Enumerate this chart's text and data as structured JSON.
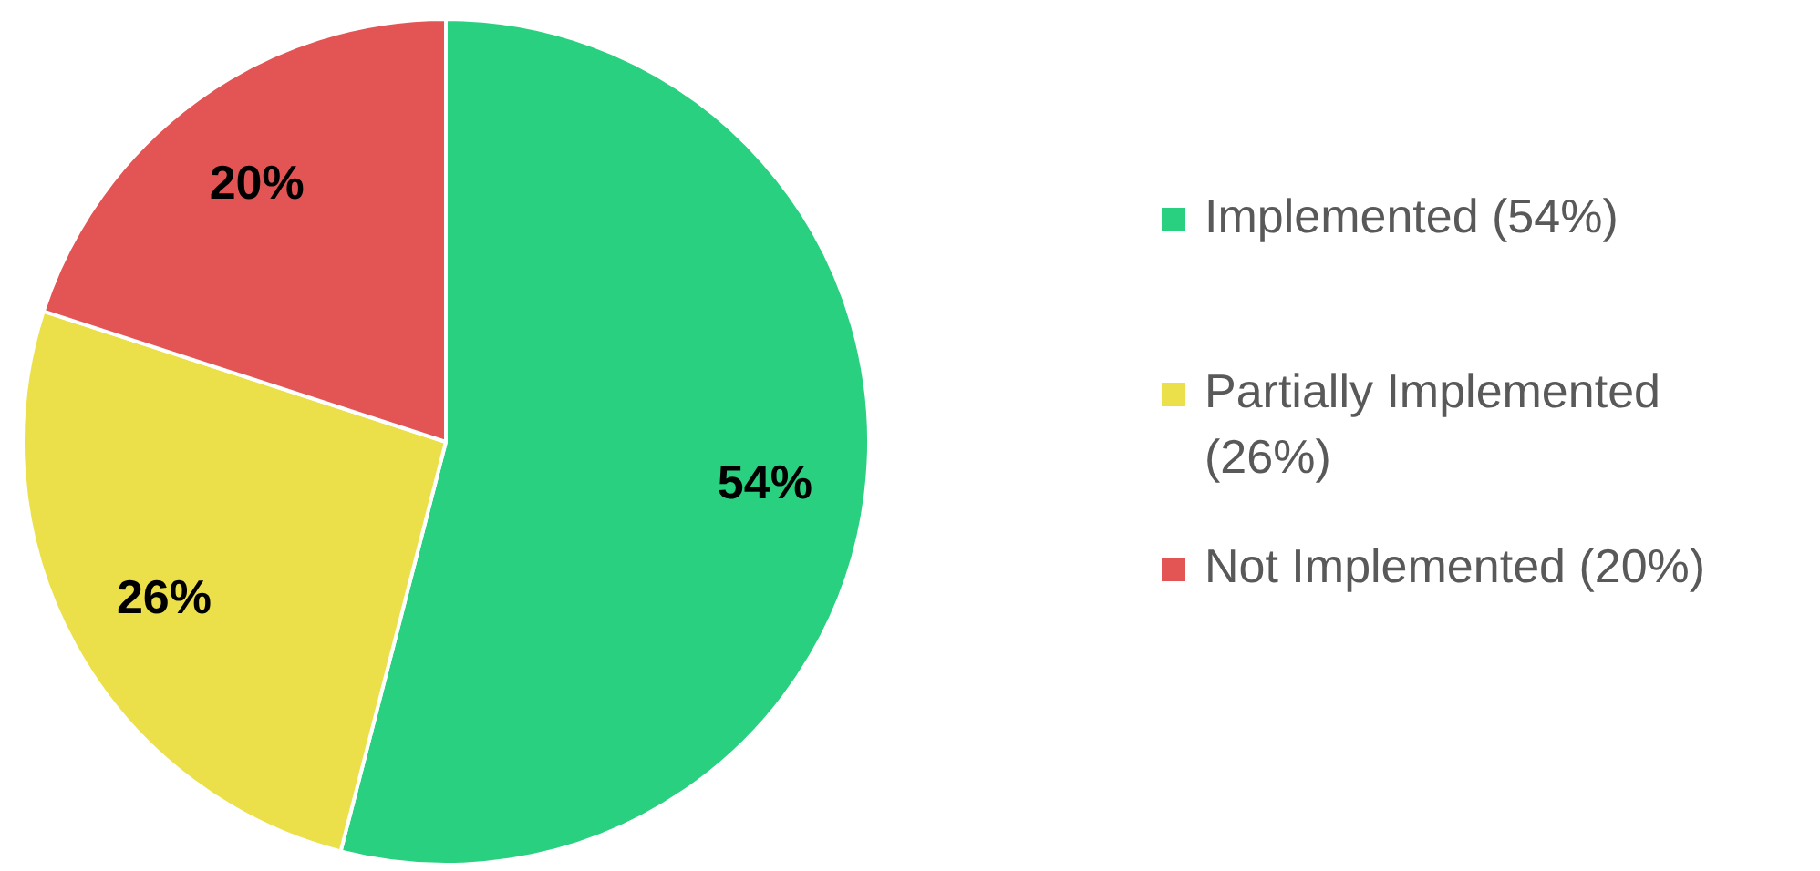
{
  "chart_data": {
    "type": "pie",
    "categories": [
      "Implemented (54%)",
      "Partially Implemented (26%)",
      "Not Implemented (20%)"
    ],
    "values": [
      54,
      26,
      20
    ],
    "colors": [
      "#29d07f",
      "#ebe04a",
      "#e35555"
    ],
    "value_labels": [
      "54%",
      "26%",
      "20%"
    ],
    "legend": "right"
  }
}
